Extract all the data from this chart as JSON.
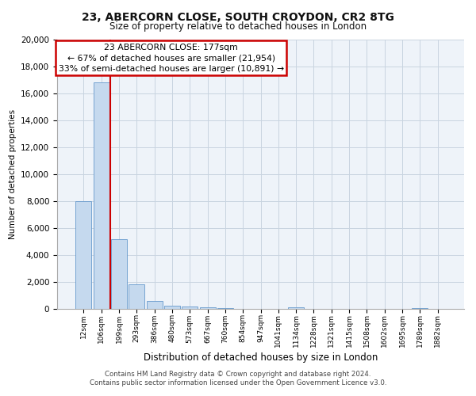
{
  "title1": "23, ABERCORN CLOSE, SOUTH CROYDON, CR2 8TG",
  "title2": "Size of property relative to detached houses in London",
  "xlabel": "Distribution of detached houses by size in London",
  "ylabel": "Number of detached properties",
  "annotation_line1": "23 ABERCORN CLOSE: 177sqm",
  "annotation_line2": "← 67% of detached houses are smaller (21,954)",
  "annotation_line3": "33% of semi-detached houses are larger (10,891) →",
  "footer1": "Contains HM Land Registry data © Crown copyright and database right 2024.",
  "footer2": "Contains public sector information licensed under the Open Government Licence v3.0.",
  "bin_labels": [
    "12sqm",
    "106sqm",
    "199sqm",
    "293sqm",
    "386sqm",
    "480sqm",
    "573sqm",
    "667sqm",
    "760sqm",
    "854sqm",
    "947sqm",
    "1041sqm",
    "1134sqm",
    "1228sqm",
    "1321sqm",
    "1415sqm",
    "1508sqm",
    "1602sqm",
    "1695sqm",
    "1789sqm",
    "1882sqm"
  ],
  "bar_heights": [
    8000,
    16800,
    5200,
    1800,
    600,
    250,
    150,
    100,
    50,
    20,
    10,
    10,
    100,
    10,
    5,
    5,
    5,
    5,
    5,
    80,
    10
  ],
  "bar_color": "#c5d9ee",
  "bar_edge_color": "#6699cc",
  "ylim": [
    0,
    20000
  ],
  "yticks": [
    0,
    2000,
    4000,
    6000,
    8000,
    10000,
    12000,
    14000,
    16000,
    18000,
    20000
  ],
  "grid_color": "#c8d4e0",
  "annotation_box_color": "#cc0000",
  "red_line_x": 1.5,
  "background_color": "#ffffff",
  "axes_bg_color": "#eef3f9"
}
